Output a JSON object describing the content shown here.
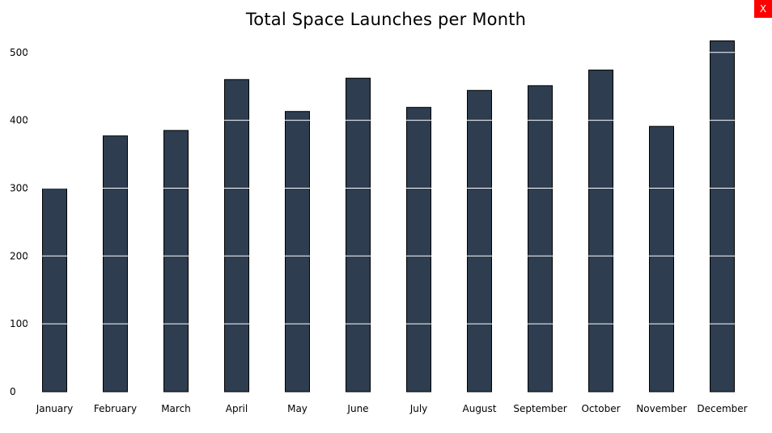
{
  "close_button": {
    "label": "X",
    "background": "#ff0000"
  },
  "chart_data": {
    "type": "bar",
    "title": "Total Space Launches per Month",
    "xlabel": "",
    "ylabel": "",
    "categories": [
      "January",
      "February",
      "March",
      "April",
      "May",
      "June",
      "July",
      "August",
      "September",
      "October",
      "November",
      "December"
    ],
    "values": [
      300,
      377,
      385,
      460,
      413,
      462,
      419,
      444,
      451,
      474,
      391,
      517
    ],
    "ylim": [
      0,
      517
    ],
    "yticks": [
      0,
      100,
      200,
      300,
      400,
      500
    ],
    "grid": "white lines drawn across bars only",
    "legend": "none",
    "bar_color": "#2e3d50",
    "bar_edge_color": "#000000"
  }
}
